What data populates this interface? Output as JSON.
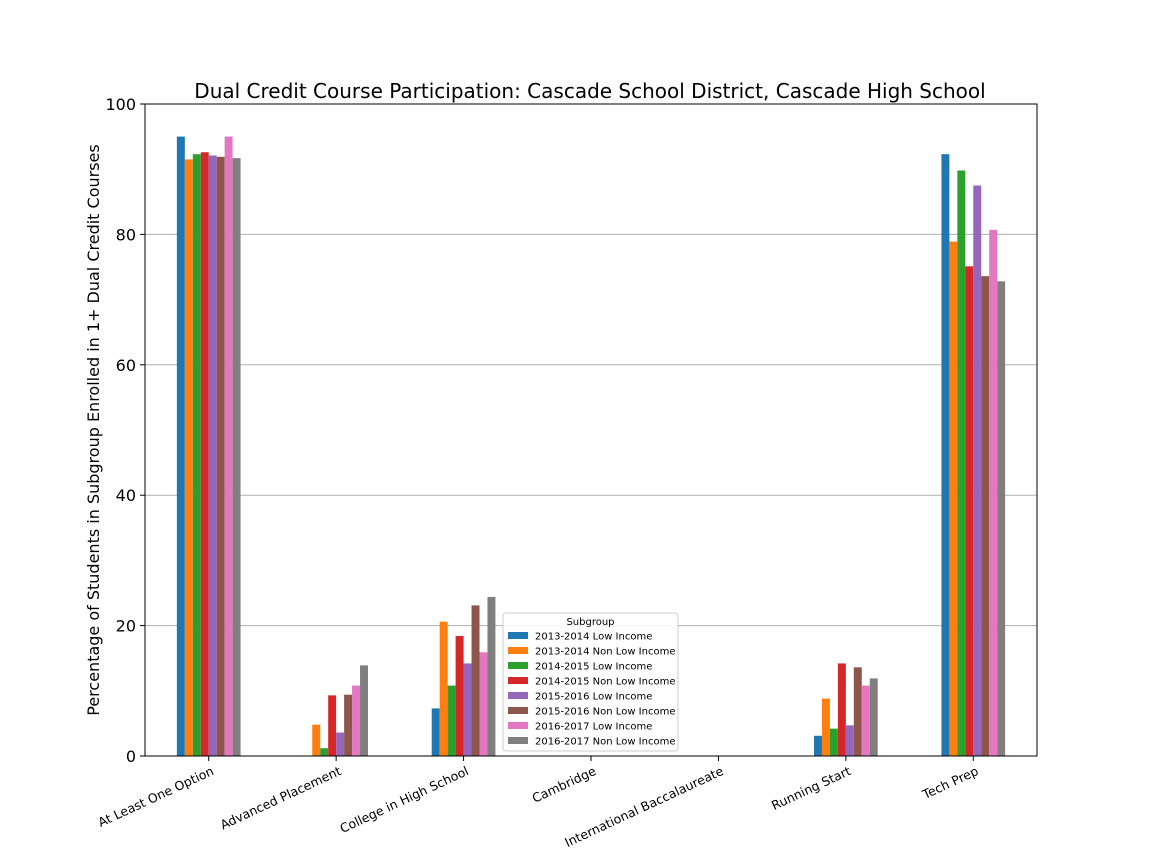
{
  "chart_data": {
    "type": "bar",
    "title": "Dual Credit Course Participation: Cascade School District, Cascade High School",
    "xlabel": "",
    "ylabel": "Percentage of Students in Subgroup Enrolled in 1+ Dual Credit Courses",
    "ylim": [
      0,
      100
    ],
    "yticks": [
      "0",
      "20",
      "40",
      "60",
      "80",
      "100"
    ],
    "grid": "horizontal",
    "legend": {
      "title": "Subgroup",
      "placement": "bottom-center"
    },
    "categories": [
      "At Least One Option",
      "Advanced Placement",
      "College in High School",
      "Cambridge",
      "International Baccalaureate",
      "Running Start",
      "Tech Prep"
    ],
    "series": [
      {
        "name": "2013-2014 Low Income",
        "color": "#1f77b4",
        "values": [
          95,
          0,
          7.3,
          0,
          0,
          3.1,
          92.3
        ]
      },
      {
        "name": "2013-2014 Non Low Income",
        "color": "#ff7f0e",
        "values": [
          91.5,
          4.8,
          20.6,
          0,
          0,
          8.8,
          78.9
        ]
      },
      {
        "name": "2014-2015 Low Income",
        "color": "#2ca02c",
        "values": [
          92.3,
          1.2,
          10.8,
          0,
          0,
          4.2,
          89.8
        ]
      },
      {
        "name": "2014-2015 Non Low Income",
        "color": "#d62728",
        "values": [
          92.6,
          9.3,
          18.4,
          0,
          0,
          14.2,
          75.1
        ]
      },
      {
        "name": "2015-2016 Low Income",
        "color": "#9467bd",
        "values": [
          92.1,
          3.6,
          14.2,
          0,
          0,
          4.7,
          87.5
        ]
      },
      {
        "name": "2015-2016 Non Low Income",
        "color": "#8c564b",
        "values": [
          91.9,
          9.4,
          23.1,
          0,
          0,
          13.6,
          73.6
        ]
      },
      {
        "name": "2016-2017 Low Income",
        "color": "#e377c2",
        "values": [
          95,
          10.8,
          15.9,
          0,
          0,
          10.8,
          80.7
        ]
      },
      {
        "name": "2016-2017 Non Low Income",
        "color": "#7f7f7f",
        "values": [
          91.7,
          13.9,
          24.4,
          0,
          0,
          11.9,
          72.8
        ]
      }
    ]
  }
}
